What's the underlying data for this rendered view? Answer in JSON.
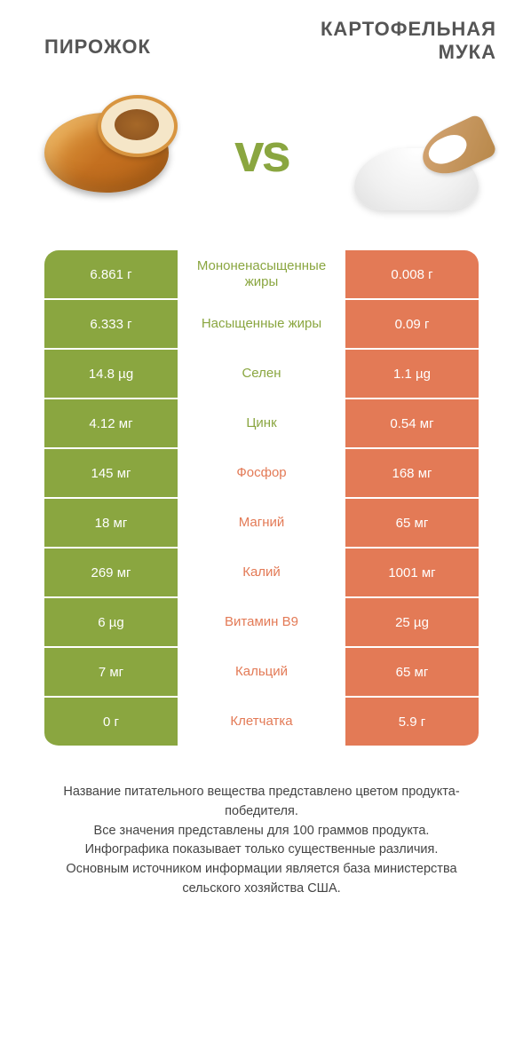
{
  "titles": {
    "left": "ПИРОЖОК",
    "right": "КАРТОФЕЛЬНАЯ МУКА"
  },
  "vs": "vs",
  "colors": {
    "green": "#8aa640",
    "orange": "#e37a56",
    "bg": "#ffffff",
    "text": "#444"
  },
  "rows": [
    {
      "left": "6.861 г",
      "label": "Мононенасыщенные жиры",
      "right": "0.008 г",
      "winner": "left"
    },
    {
      "left": "6.333 г",
      "label": "Насыщенные жиры",
      "right": "0.09 г",
      "winner": "left"
    },
    {
      "left": "14.8 µg",
      "label": "Селен",
      "right": "1.1 µg",
      "winner": "left"
    },
    {
      "left": "4.12 мг",
      "label": "Цинк",
      "right": "0.54 мг",
      "winner": "left"
    },
    {
      "left": "145 мг",
      "label": "Фосфор",
      "right": "168 мг",
      "winner": "right"
    },
    {
      "left": "18 мг",
      "label": "Магний",
      "right": "65 мг",
      "winner": "right"
    },
    {
      "left": "269 мг",
      "label": "Калий",
      "right": "1001 мг",
      "winner": "right"
    },
    {
      "left": "6 µg",
      "label": "Витамин B9",
      "right": "25 µg",
      "winner": "right"
    },
    {
      "left": "7 мг",
      "label": "Кальций",
      "right": "65 мг",
      "winner": "right"
    },
    {
      "left": "0 г",
      "label": "Клетчатка",
      "right": "5.9 г",
      "winner": "right"
    }
  ],
  "footer": {
    "line1": "Название питательного вещества представлено цветом продукта-победителя.",
    "line2": "Все значения представлены для 100 граммов продукта.",
    "line3": "Инфографика показывает только существенные различия.",
    "line4": "Основным источником информации является база министерства сельского хозяйства США."
  }
}
